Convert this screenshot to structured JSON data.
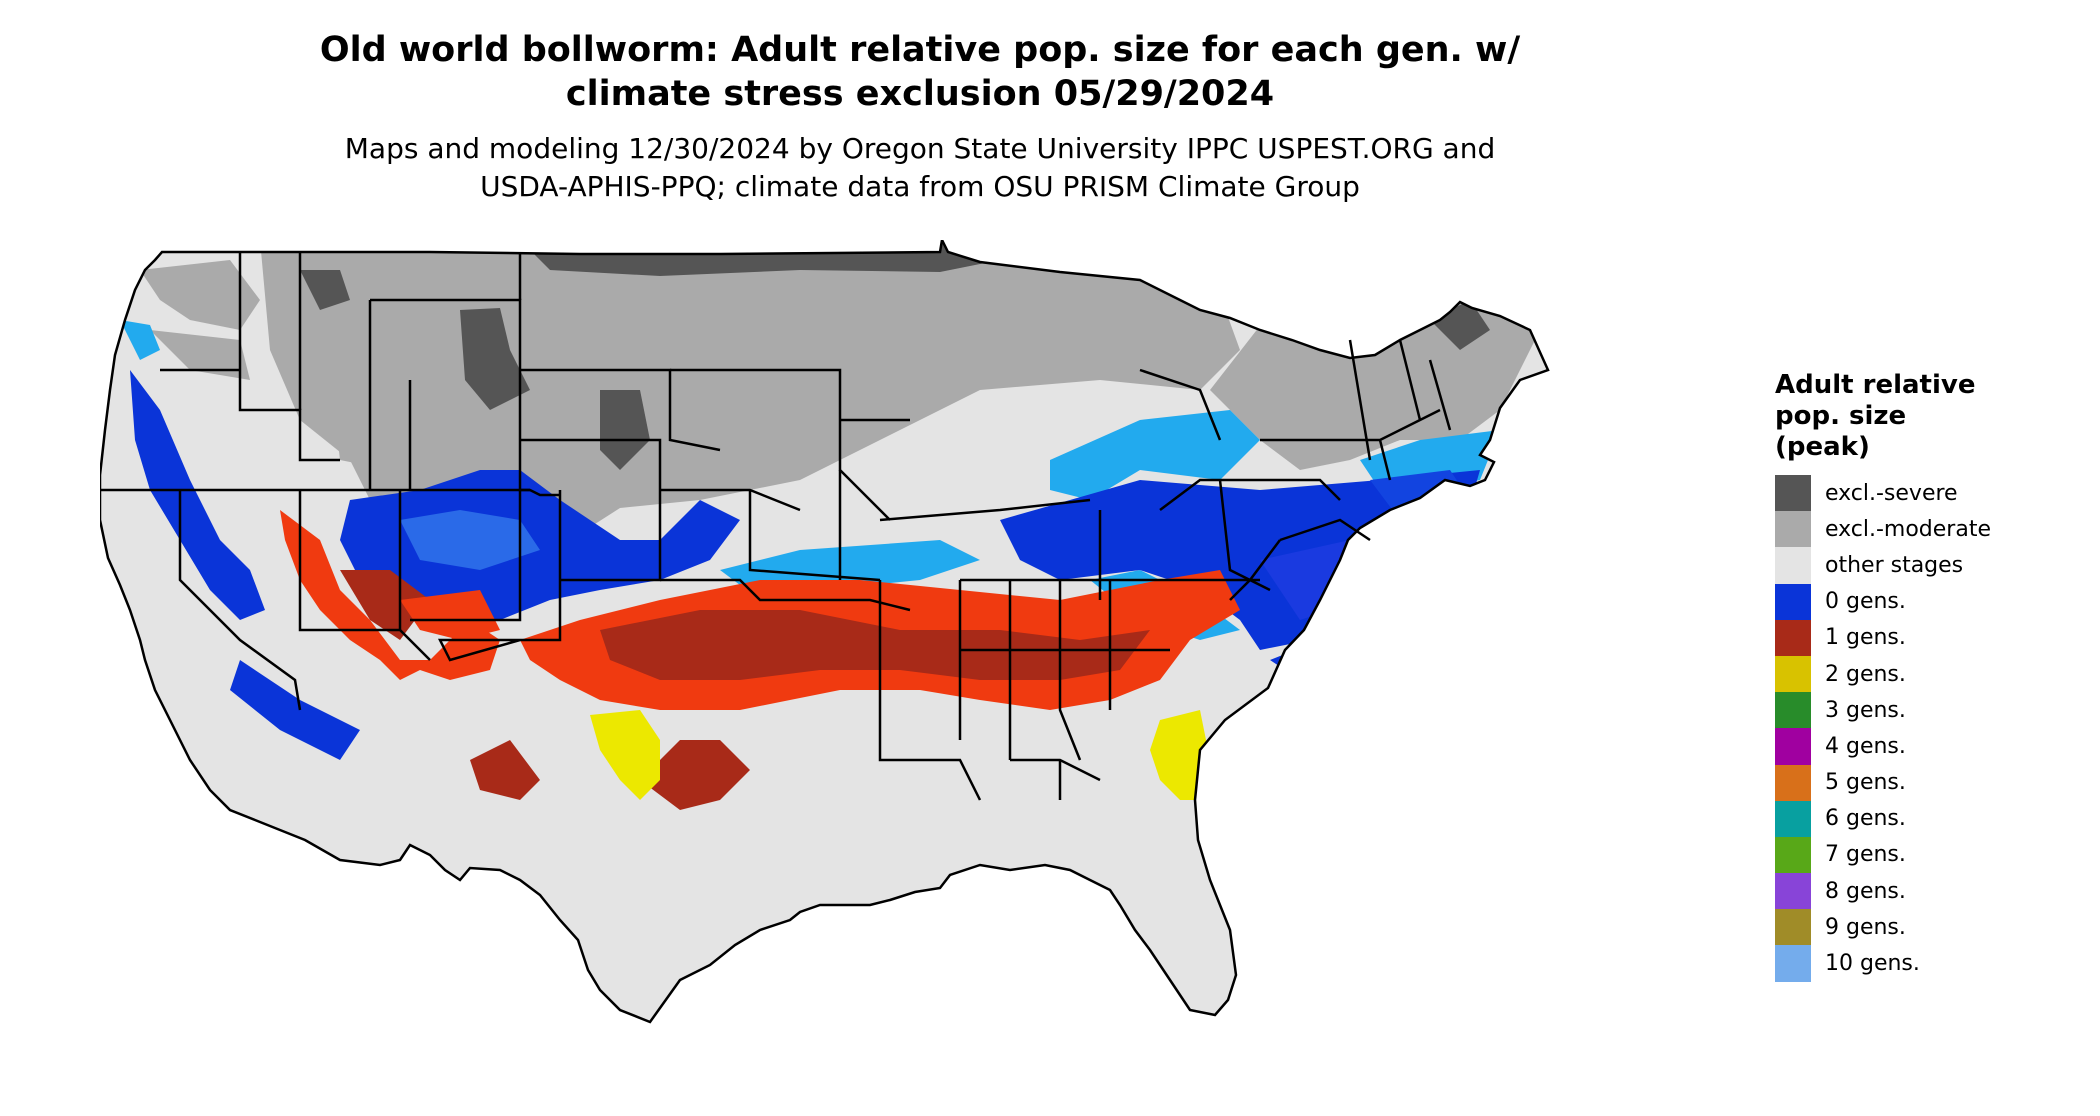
{
  "title_line1": "Old world bollworm: Adult relative pop. size for each gen. w/",
  "title_line2": "climate stress exclusion 05/29/2024",
  "subtitle_line1": "Maps and modeling 12/30/2024 by Oregon State University IPPC USPEST.ORG and",
  "subtitle_line2": "USDA-APHIS-PPQ; climate data from OSU PRISM Climate Group",
  "legend": {
    "title_lines": [
      "Adult relative",
      "pop. size",
      "(peak)"
    ],
    "items": [
      {
        "label": "excl.-severe",
        "color": "#555555"
      },
      {
        "label": "excl.-moderate",
        "color": "#aaaaaa"
      },
      {
        "label": "other stages",
        "color": "#e4e4e4"
      },
      {
        "label": "0 gens.",
        "color": "#0a34d8"
      },
      {
        "label": "1 gens.",
        "color": "#a82a18"
      },
      {
        "label": "2 gens.",
        "color": "#d8c200"
      },
      {
        "label": "3 gens.",
        "color": "#288c2a"
      },
      {
        "label": "4 gens.",
        "color": "#a000a0"
      },
      {
        "label": "5 gens.",
        "color": "#d8701a"
      },
      {
        "label": "6 gens.",
        "color": "#08a0a0"
      },
      {
        "label": "7 gens.",
        "color": "#58a818"
      },
      {
        "label": "8 gens.",
        "color": "#8844d8"
      },
      {
        "label": "9 gens.",
        "color": "#a08c28"
      },
      {
        "label": "10 gens.",
        "color": "#74acec"
      }
    ]
  },
  "map_colors": {
    "base": "#e4e4e4",
    "excl_moderate": "#aaaaaa",
    "excl_severe": "#555555",
    "zero_gens": "#0a34d8",
    "light_blue": "#22aaee",
    "one_gen_red": "#f03a10",
    "one_gen_dark": "#a82a18",
    "two_gens": "#ece800",
    "three_gens_green": "#30c030",
    "border": "#000000"
  }
}
